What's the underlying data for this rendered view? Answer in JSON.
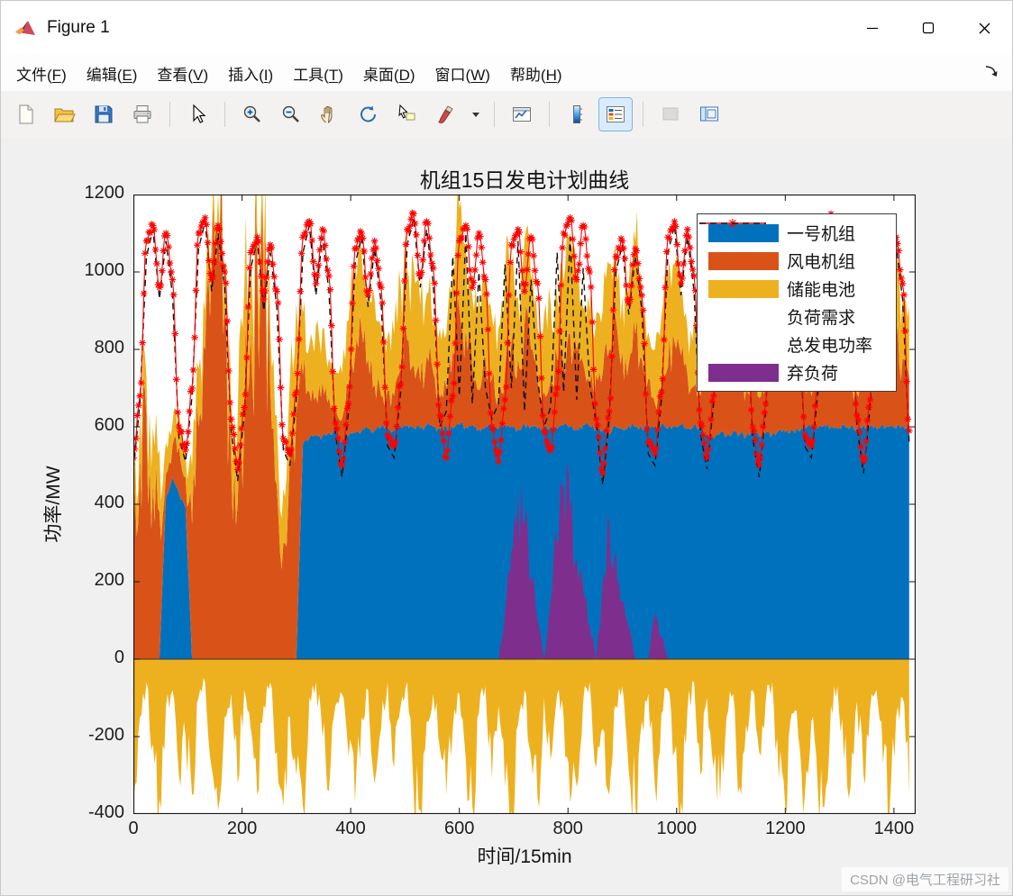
{
  "window": {
    "title": "Figure 1",
    "controls": [
      {
        "name": "minimize"
      },
      {
        "name": "maximize"
      },
      {
        "name": "close"
      }
    ]
  },
  "menu": {
    "items": [
      {
        "text": "文件",
        "key": "F"
      },
      {
        "text": "编辑",
        "key": "E"
      },
      {
        "text": "查看",
        "key": "V"
      },
      {
        "text": "插入",
        "key": "I"
      },
      {
        "text": "工具",
        "key": "T"
      },
      {
        "text": "桌面",
        "key": "D"
      },
      {
        "text": "窗口",
        "key": "W"
      },
      {
        "text": "帮助",
        "key": "H"
      }
    ],
    "dock_arrow_icon": "dock-figure-arrow"
  },
  "toolbar": {
    "items": [
      {
        "name": "new-figure"
      },
      {
        "name": "open-file"
      },
      {
        "name": "save-figure"
      },
      {
        "name": "print-figure"
      },
      {
        "sep": true
      },
      {
        "name": "edit-plot"
      },
      {
        "sep": true
      },
      {
        "name": "zoom-in"
      },
      {
        "name": "zoom-out"
      },
      {
        "name": "pan"
      },
      {
        "name": "rotate-3d"
      },
      {
        "name": "data-cursor"
      },
      {
        "name": "brush"
      },
      {
        "name": "brush-dropdown",
        "narrow": true
      },
      {
        "sep": true
      },
      {
        "name": "link-plot"
      },
      {
        "sep": true
      },
      {
        "name": "insert-colorbar"
      },
      {
        "name": "insert-legend",
        "active": true
      },
      {
        "sep": true
      },
      {
        "name": "hide-plot-tools",
        "disabled": true
      },
      {
        "name": "show-plot-tools"
      }
    ]
  },
  "watermark": "CSDN @电气工程研习社",
  "chart_data": {
    "type": "combo",
    "title": "机组15日发电计划曲线",
    "xlabel": "时间/15min",
    "ylabel": "功率/MW",
    "xlim": [
      0,
      1440
    ],
    "ylim": [
      -400,
      1200
    ],
    "xticks": [
      0,
      200,
      400,
      600,
      800,
      1000,
      1200,
      1400
    ],
    "yticks": [
      -400,
      -200,
      0,
      200,
      400,
      600,
      800,
      1000,
      1200
    ],
    "x_step": 12,
    "legend_position": "top-right",
    "grid": false,
    "style": {
      "noise_seed": 11
    },
    "legend": [
      {
        "label": "一号机组",
        "color": "#0072BD",
        "type": "patch"
      },
      {
        "label": "风电机组",
        "color": "#D95319",
        "type": "patch"
      },
      {
        "label": "储能电池",
        "color": "#EDB120",
        "type": "patch"
      },
      {
        "label": "负荷需求",
        "color": "#FF0000",
        "type": "star-line"
      },
      {
        "label": "总发电功率",
        "color": "#111111",
        "type": "dash-line"
      },
      {
        "label": "弃负荷",
        "color": "#7E2F8E",
        "type": "patch"
      }
    ],
    "series": {
      "unit1": {
        "label": "一号机组",
        "color": "#0072BD",
        "values": [
          0,
          0,
          0,
          0,
          0,
          420,
          470,
          430,
          390,
          0,
          0,
          0,
          0,
          0,
          0,
          0,
          0,
          0,
          0,
          0,
          0,
          0,
          0,
          0,
          0,
          0,
          555,
          570,
          580,
          575,
          585,
          590,
          560,
          575,
          585,
          590,
          595,
          590,
          600,
          595,
          590,
          600,
          605,
          600,
          595,
          605,
          600,
          595,
          600,
          595,
          605,
          600,
          605,
          595,
          600,
          605,
          595,
          605,
          600,
          595,
          605,
          600,
          595,
          600,
          600,
          595,
          605,
          600,
          595,
          605,
          600,
          595,
          590,
          580,
          600,
          595,
          605,
          600,
          595,
          605,
          600,
          605,
          595,
          600,
          605,
          595,
          605,
          600,
          580,
          570,
          585,
          575,
          590,
          580,
          575,
          585,
          575,
          585,
          580,
          590,
          585,
          595,
          590,
          600,
          600,
          595,
          605,
          600,
          595,
          605,
          600,
          595,
          605,
          600,
          595,
          605,
          600,
          595,
          605,
          600
        ]
      },
      "wind": {
        "label": "风电机组",
        "color": "#D95319",
        "values": [
          300,
          520,
          630,
          450,
          380,
          60,
          80,
          120,
          80,
          350,
          600,
          800,
          1000,
          1140,
          900,
          500,
          400,
          600,
          850,
          1000,
          950,
          700,
          450,
          300,
          520,
          640,
          180,
          120,
          100,
          140,
          90,
          70,
          60,
          120,
          200,
          260,
          180,
          120,
          80,
          100,
          90,
          150,
          220,
          160,
          120,
          180,
          140,
          80,
          100,
          200,
          300,
          250,
          150,
          100,
          180,
          120,
          80,
          140,
          220,
          180,
          260,
          200,
          120,
          90,
          120,
          180,
          150,
          240,
          200,
          160,
          100,
          140,
          150,
          220,
          280,
          200,
          160,
          240,
          180,
          120,
          60,
          100,
          160,
          220,
          180,
          140,
          100,
          80,
          200,
          260,
          180,
          140,
          220,
          160,
          120,
          180,
          100,
          160,
          220,
          180,
          140,
          200,
          160,
          120,
          80,
          120,
          180,
          240,
          200,
          150,
          110,
          90,
          140,
          200,
          160,
          120,
          180,
          220,
          170,
          130
        ]
      },
      "storage_pos": {
        "label": "储能电池",
        "color": "#EDB120",
        "values": [
          80,
          120,
          100,
          150,
          160,
          80,
          60,
          90,
          60,
          150,
          150,
          100,
          80,
          60,
          120,
          160,
          220,
          350,
          200,
          120,
          100,
          150,
          180,
          140,
          200,
          280,
          160,
          120,
          180,
          140,
          100,
          80,
          120,
          180,
          240,
          200,
          160,
          220,
          180,
          140,
          160,
          220,
          180,
          260,
          200,
          160,
          120,
          180,
          140,
          200,
          260,
          220,
          180,
          240,
          200,
          160,
          180,
          240,
          200,
          160,
          220,
          180,
          140,
          200,
          200,
          160,
          220,
          260,
          180,
          140,
          200,
          160,
          160,
          220,
          180,
          140,
          200,
          240,
          180,
          120,
          140,
          180,
          240,
          200,
          160,
          120,
          180,
          220,
          180,
          140,
          200,
          240,
          200,
          160,
          220,
          180,
          160,
          200,
          180,
          220,
          260,
          200,
          160,
          140,
          120,
          180,
          220,
          160,
          200,
          240,
          180,
          160,
          200,
          240,
          180,
          140,
          180,
          200,
          160,
          180
        ]
      },
      "storage_neg": {
        "label": "储能电池",
        "color": "#EDB120",
        "values": [
          -380,
          -150,
          -60,
          -220,
          -360,
          -120,
          -80,
          -300,
          -200,
          -350,
          -100,
          -60,
          -280,
          -390,
          -150,
          -90,
          -320,
          -80,
          -180,
          -350,
          -120,
          -60,
          -240,
          -380,
          -150,
          -300,
          -380,
          -100,
          -60,
          -200,
          -340,
          -120,
          -90,
          -250,
          -370,
          -150,
          -80,
          -320,
          -180,
          -60,
          -280,
          -120,
          -60,
          -340,
          -390,
          -160,
          -90,
          -230,
          -350,
          -180,
          -90,
          -260,
          -380,
          -140,
          -70,
          -310,
          -120,
          -330,
          -390,
          -170,
          -80,
          -250,
          -360,
          -100,
          -260,
          -90,
          -150,
          -370,
          -330,
          -110,
          -60,
          -280,
          -180,
          -350,
          -120,
          -70,
          -290,
          -380,
          -160,
          -90,
          -330,
          -140,
          -80,
          -240,
          -370,
          -130,
          -60,
          -300,
          -100,
          -280,
          -360,
          -150,
          -90,
          -330,
          -170,
          -80,
          -240,
          -110,
          -60,
          -310,
          -380,
          -140,
          -200,
          -350,
          -160,
          -340,
          -380,
          -120,
          -70,
          -260,
          -330,
          -110,
          -300,
          -130,
          -80,
          -270,
          -390,
          -150,
          -100,
          -350
        ]
      },
      "curtail": {
        "label": "弃负荷",
        "color": "#7E2F8E",
        "values": [
          0,
          0,
          0,
          0,
          0,
          0,
          0,
          0,
          0,
          0,
          0,
          0,
          0,
          0,
          0,
          0,
          0,
          0,
          0,
          0,
          0,
          0,
          0,
          0,
          0,
          0,
          0,
          0,
          0,
          0,
          0,
          0,
          0,
          0,
          0,
          0,
          0,
          0,
          0,
          0,
          0,
          0,
          0,
          0,
          0,
          0,
          0,
          0,
          0,
          0,
          0,
          0,
          0,
          0,
          0,
          0,
          0,
          120,
          280,
          420,
          350,
          200,
          100,
          0,
          150,
          300,
          450,
          380,
          260,
          180,
          90,
          0,
          200,
          350,
          280,
          150,
          80,
          0,
          0,
          0,
          120,
          60,
          0,
          0,
          0,
          0,
          0,
          0,
          0,
          0,
          0,
          0,
          0,
          0,
          0,
          0,
          0,
          0,
          0,
          0,
          0,
          0,
          0,
          0,
          0,
          0,
          0,
          0,
          0,
          0,
          0,
          0,
          0,
          0,
          0,
          0,
          0,
          0,
          0,
          0
        ]
      },
      "load": {
        "label": "负荷需求",
        "color": "#FF0000",
        "marker": "*",
        "values": [
          520,
          680,
          1080,
          1120,
          960,
          1100,
          980,
          600,
          540,
          700,
          1100,
          1140,
          980,
          1120,
          1000,
          620,
          490,
          650,
          1050,
          1090,
          930,
          1070,
          950,
          570,
          530,
          690,
          1090,
          1130,
          970,
          1110,
          990,
          610,
          500,
          660,
          1060,
          1100,
          940,
          1080,
          960,
          580,
          550,
          710,
          1110,
          1150,
          990,
          1130,
          1010,
          630,
          520,
          680,
          1080,
          1120,
          960,
          1100,
          980,
          600,
          510,
          670,
          1070,
          1110,
          950,
          1090,
          970,
          590,
          540,
          700,
          1100,
          1140,
          980,
          1120,
          1000,
          620,
          480,
          640,
          1040,
          1080,
          920,
          1060,
          940,
          560,
          530,
          690,
          1090,
          1130,
          970,
          1110,
          990,
          610,
          520,
          680,
          1080,
          1120,
          960,
          1100,
          980,
          600,
          500,
          660,
          1060,
          1100,
          940,
          1080,
          960,
          580,
          550,
          710,
          1110,
          1150,
          990,
          1130,
          1010,
          630,
          510,
          670,
          1070,
          1110,
          950,
          1090,
          970,
          590
        ]
      },
      "total": {
        "label": "总发电功率",
        "color": "#111111",
        "dash": true,
        "values": [
          490,
          660,
          1040,
          1110,
          930,
          1080,
          940,
          570,
          510,
          680,
          1060,
          1130,
          950,
          1100,
          960,
          590,
          460,
          630,
          1010,
          1080,
          900,
          1050,
          910,
          540,
          500,
          670,
          1050,
          1120,
          940,
          1090,
          950,
          580,
          470,
          640,
          1020,
          1090,
          910,
          1060,
          920,
          550,
          520,
          690,
          1070,
          1140,
          960,
          1110,
          970,
          600,
          640,
          1040,
          680,
          1100,
          660,
          1000,
          700,
          620,
          660,
          1020,
          700,
          1080,
          640,
          980,
          720,
          600,
          650,
          1050,
          690,
          1090,
          670,
          1010,
          710,
          610,
          450,
          620,
          1000,
          1070,
          890,
          1040,
          900,
          530,
          500,
          670,
          1050,
          1120,
          940,
          1090,
          950,
          580,
          490,
          660,
          1040,
          1110,
          930,
          1080,
          940,
          570,
          470,
          640,
          1020,
          1090,
          910,
          1060,
          920,
          550,
          520,
          690,
          1070,
          1140,
          960,
          1110,
          970,
          600,
          480,
          650,
          1030,
          1100,
          920,
          1070,
          930,
          560
        ]
      }
    }
  }
}
